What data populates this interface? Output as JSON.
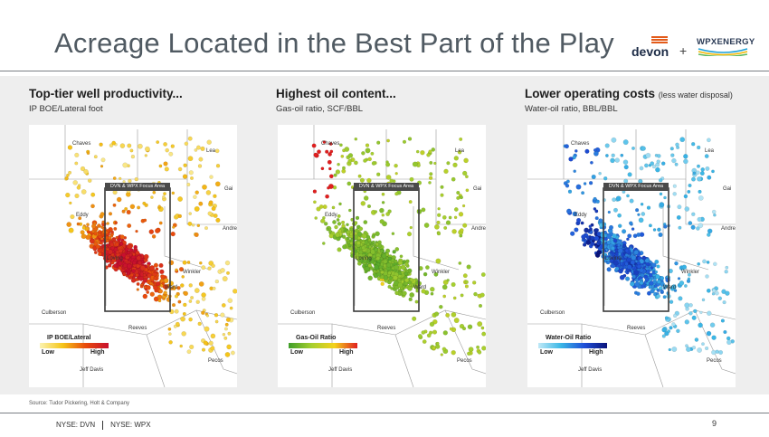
{
  "slide": {
    "title": "Acreage Located in the Best Part of the Play",
    "source": "Source: Tudor Pickering, Holt & Company",
    "page_number": "9",
    "tickers": [
      "NYSE: DVN",
      "NYSE: WPX"
    ]
  },
  "logos": {
    "devon": "devon",
    "plus": "+",
    "wpx": "WPXENERGY"
  },
  "panels": [
    {
      "heading": "Top-tier well productivity...",
      "heading_note": "",
      "subheading": "IP BOE/Lateral foot",
      "legend_title": "IP BOE/Lateral",
      "legend_low": "Low",
      "legend_high": "High",
      "legend_colors": [
        "#fbf3b0",
        "#f5c518",
        "#e84a0c",
        "#c8102e"
      ]
    },
    {
      "heading": "Highest oil content...",
      "heading_note": "",
      "subheading": "Gas-oil ratio, SCF/BBL",
      "legend_title": "Gas-Oil Ratio",
      "legend_low": "Low",
      "legend_high": "High",
      "legend_colors": [
        "#3f9e2a",
        "#a6cf2f",
        "#f4d21b",
        "#e01f1f"
      ]
    },
    {
      "heading": "Lower operating costs",
      "heading_note": "(less water disposal)",
      "subheading": "Water-oil ratio, BBL/BBL",
      "legend_title": "Water-Oil Ratio",
      "legend_low": "Low",
      "legend_high": "High",
      "legend_colors": [
        "#bfe9f7",
        "#39b6e6",
        "#1f4fd8",
        "#0b147a"
      ]
    }
  ],
  "map_labels": {
    "chaves": "Chaves",
    "lea": "Lea",
    "eddy": "Eddy",
    "loving": "Loving",
    "winkler": "Winkler",
    "culberson": "Culberson",
    "reeves": "Reeves",
    "ward": "Ward",
    "andrews": "Andrews",
    "gaines": "Gai",
    "pecos": "Pecos",
    "jeff_davis": "Jeff Davis",
    "focus_area": "DVN & WPX Focus Area"
  }
}
